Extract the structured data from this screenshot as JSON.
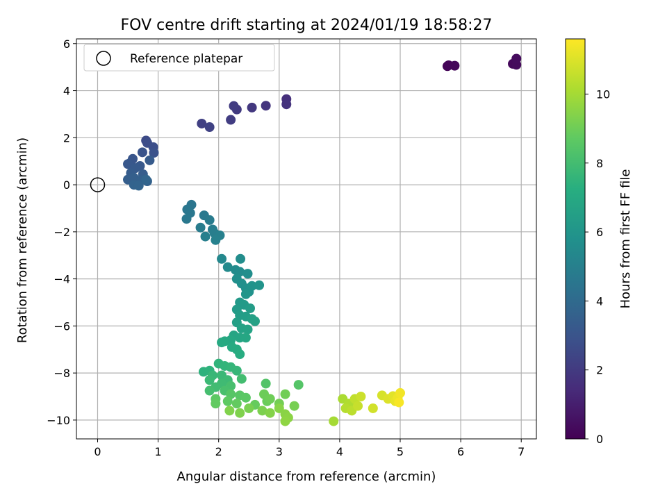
{
  "chart_data": {
    "type": "scatter",
    "title": "FOV centre drift starting at 2024/01/19 18:58:27",
    "xlabel": "Angular distance from reference (arcmin)",
    "ylabel": "Rotation from reference (arcmin)",
    "xlim": [
      -0.35,
      7.25
    ],
    "ylim": [
      -10.8,
      6.2
    ],
    "xticks": [
      0,
      1,
      2,
      3,
      4,
      5,
      6,
      7
    ],
    "yticks": [
      -10,
      -8,
      -6,
      -4,
      -2,
      0,
      2,
      4,
      6
    ],
    "grid": true,
    "legend": {
      "placement": "top-left",
      "entries": [
        "Reference platepar"
      ]
    },
    "reference_point": {
      "x": 0,
      "y": 0,
      "label": "Reference platepar"
    },
    "colorbar": {
      "label": "Hours from first FF file",
      "colormap": "viridis",
      "range": [
        0,
        11.6
      ],
      "ticks": [
        0,
        2,
        4,
        6,
        8,
        10
      ]
    },
    "points": [
      [
        5.78,
        5.04,
        0.1
      ],
      [
        5.8,
        5.08,
        0.15
      ],
      [
        5.9,
        5.06,
        0.2
      ],
      [
        6.86,
        5.14,
        0.25
      ],
      [
        6.92,
        5.1,
        0.3
      ],
      [
        6.92,
        5.36,
        0.35
      ],
      [
        3.12,
        3.64,
        1.6
      ],
      [
        3.12,
        3.42,
        1.7
      ],
      [
        2.78,
        3.36,
        1.8
      ],
      [
        2.55,
        3.28,
        1.9
      ],
      [
        2.3,
        3.2,
        2.0
      ],
      [
        2.25,
        3.35,
        2.05
      ],
      [
        2.2,
        2.76,
        2.1
      ],
      [
        1.72,
        2.6,
        2.2
      ],
      [
        1.85,
        2.45,
        2.3
      ],
      [
        0.8,
        1.88,
        2.6
      ],
      [
        0.82,
        1.78,
        2.7
      ],
      [
        0.92,
        1.6,
        2.8
      ],
      [
        0.93,
        1.36,
        2.9
      ],
      [
        0.74,
        1.38,
        3.0
      ],
      [
        0.58,
        1.1,
        3.05
      ],
      [
        0.55,
        0.95,
        3.1
      ],
      [
        0.5,
        0.88,
        3.15
      ],
      [
        0.7,
        0.8,
        3.2
      ],
      [
        0.62,
        0.7,
        3.25
      ],
      [
        0.86,
        1.04,
        3.3
      ],
      [
        0.55,
        0.5,
        3.35
      ],
      [
        0.75,
        0.45,
        3.4
      ],
      [
        0.5,
        0.22,
        3.45
      ],
      [
        0.6,
        0.3,
        3.5
      ],
      [
        0.72,
        0.2,
        3.55
      ],
      [
        0.82,
        0.15,
        3.6
      ],
      [
        0.6,
        0.0,
        3.65
      ],
      [
        0.68,
        -0.04,
        3.7
      ],
      [
        0.8,
        0.22,
        3.75
      ],
      [
        1.55,
        -0.85,
        4.5
      ],
      [
        1.48,
        -1.05,
        4.55
      ],
      [
        1.53,
        -1.2,
        4.6
      ],
      [
        1.47,
        -1.45,
        4.65
      ],
      [
        1.76,
        -1.3,
        4.7
      ],
      [
        1.85,
        -1.5,
        4.75
      ],
      [
        1.7,
        -1.82,
        4.8
      ],
      [
        1.9,
        -1.9,
        4.85
      ],
      [
        1.93,
        -2.05,
        4.9
      ],
      [
        1.78,
        -2.2,
        4.95
      ],
      [
        2.02,
        -2.15,
        5.0
      ],
      [
        1.95,
        -2.35,
        5.05
      ],
      [
        2.05,
        -3.15,
        5.4
      ],
      [
        2.15,
        -3.5,
        5.45
      ],
      [
        2.28,
        -3.62,
        5.5
      ],
      [
        2.35,
        -3.7,
        5.55
      ],
      [
        2.36,
        -3.15,
        5.6
      ],
      [
        2.48,
        -3.78,
        5.65
      ],
      [
        2.3,
        -4.0,
        5.7
      ],
      [
        2.38,
        -4.2,
        5.75
      ],
      [
        2.45,
        -4.4,
        5.8
      ],
      [
        2.5,
        -4.55,
        5.85
      ],
      [
        2.55,
        -4.3,
        5.9
      ],
      [
        2.67,
        -4.27,
        5.95
      ],
      [
        2.45,
        -4.65,
        6.0
      ],
      [
        2.35,
        -5.0,
        6.2
      ],
      [
        2.42,
        -5.1,
        6.25
      ],
      [
        2.3,
        -5.3,
        6.3
      ],
      [
        2.52,
        -5.25,
        6.35
      ],
      [
        2.35,
        -5.55,
        6.4
      ],
      [
        2.45,
        -5.6,
        6.45
      ],
      [
        2.3,
        -5.85,
        6.5
      ],
      [
        2.55,
        -5.7,
        6.55
      ],
      [
        2.6,
        -5.8,
        6.6
      ],
      [
        2.38,
        -6.1,
        6.65
      ],
      [
        2.48,
        -6.15,
        6.7
      ],
      [
        2.25,
        -6.4,
        6.75
      ],
      [
        2.35,
        -6.5,
        6.8
      ],
      [
        2.45,
        -6.5,
        6.85
      ],
      [
        2.2,
        -6.6,
        6.9
      ],
      [
        2.1,
        -6.65,
        6.95
      ],
      [
        2.05,
        -6.7,
        7.0
      ],
      [
        2.22,
        -6.9,
        7.05
      ],
      [
        2.3,
        -7.0,
        7.1
      ],
      [
        2.35,
        -7.2,
        7.15
      ],
      [
        1.75,
        -7.95,
        7.4
      ],
      [
        1.85,
        -7.9,
        7.45
      ],
      [
        2.0,
        -7.6,
        7.5
      ],
      [
        2.1,
        -7.7,
        7.55
      ],
      [
        2.2,
        -7.75,
        7.6
      ],
      [
        2.3,
        -7.9,
        7.65
      ],
      [
        1.9,
        -8.1,
        7.7
      ],
      [
        2.05,
        -8.1,
        7.75
      ],
      [
        1.85,
        -8.3,
        7.8
      ],
      [
        2.15,
        -8.3,
        7.85
      ],
      [
        2.05,
        -8.45,
        7.9
      ],
      [
        1.95,
        -8.6,
        7.95
      ],
      [
        2.38,
        -8.25,
        8.0
      ],
      [
        1.85,
        -8.75,
        8.05
      ],
      [
        2.2,
        -8.55,
        8.1
      ],
      [
        2.1,
        -8.75,
        8.15
      ],
      [
        2.78,
        -8.45,
        8.4
      ],
      [
        3.32,
        -8.5,
        8.45
      ],
      [
        2.2,
        -8.9,
        8.5
      ],
      [
        2.35,
        -8.95,
        8.55
      ],
      [
        2.45,
        -9.05,
        8.6
      ],
      [
        1.95,
        -9.1,
        8.65
      ],
      [
        2.15,
        -9.2,
        8.7
      ],
      [
        1.95,
        -9.3,
        8.75
      ],
      [
        2.3,
        -9.3,
        8.8
      ],
      [
        2.6,
        -9.35,
        8.85
      ],
      [
        2.8,
        -9.2,
        8.9
      ],
      [
        2.75,
        -8.9,
        8.95
      ],
      [
        2.85,
        -9.1,
        9.0
      ],
      [
        3.1,
        -8.9,
        9.05
      ],
      [
        3.0,
        -9.3,
        9.1
      ],
      [
        3.25,
        -9.4,
        9.15
      ],
      [
        2.5,
        -9.5,
        9.2
      ],
      [
        2.72,
        -9.6,
        9.25
      ],
      [
        2.35,
        -9.7,
        9.3
      ],
      [
        2.18,
        -9.6,
        9.35
      ],
      [
        2.85,
        -9.7,
        9.4
      ],
      [
        3.0,
        -9.5,
        9.45
      ],
      [
        3.1,
        -9.75,
        9.5
      ],
      [
        3.15,
        -9.9,
        9.55
      ],
      [
        3.1,
        -10.05,
        9.6
      ],
      [
        3.9,
        -10.05,
        10.0
      ],
      [
        4.05,
        -9.1,
        10.1
      ],
      [
        4.15,
        -9.3,
        10.2
      ],
      [
        4.1,
        -9.5,
        10.3
      ],
      [
        4.2,
        -9.6,
        10.4
      ],
      [
        4.25,
        -9.1,
        10.5
      ],
      [
        4.3,
        -9.4,
        10.6
      ],
      [
        4.35,
        -9.0,
        10.7
      ],
      [
        4.55,
        -9.5,
        10.8
      ],
      [
        4.7,
        -8.95,
        10.9
      ],
      [
        4.8,
        -9.1,
        11.0
      ],
      [
        4.88,
        -8.98,
        11.1
      ],
      [
        4.92,
        -9.2,
        11.2
      ],
      [
        4.96,
        -9.05,
        11.3
      ],
      [
        5.0,
        -8.85,
        11.4
      ],
      [
        4.98,
        -9.25,
        11.5
      ]
    ]
  }
}
